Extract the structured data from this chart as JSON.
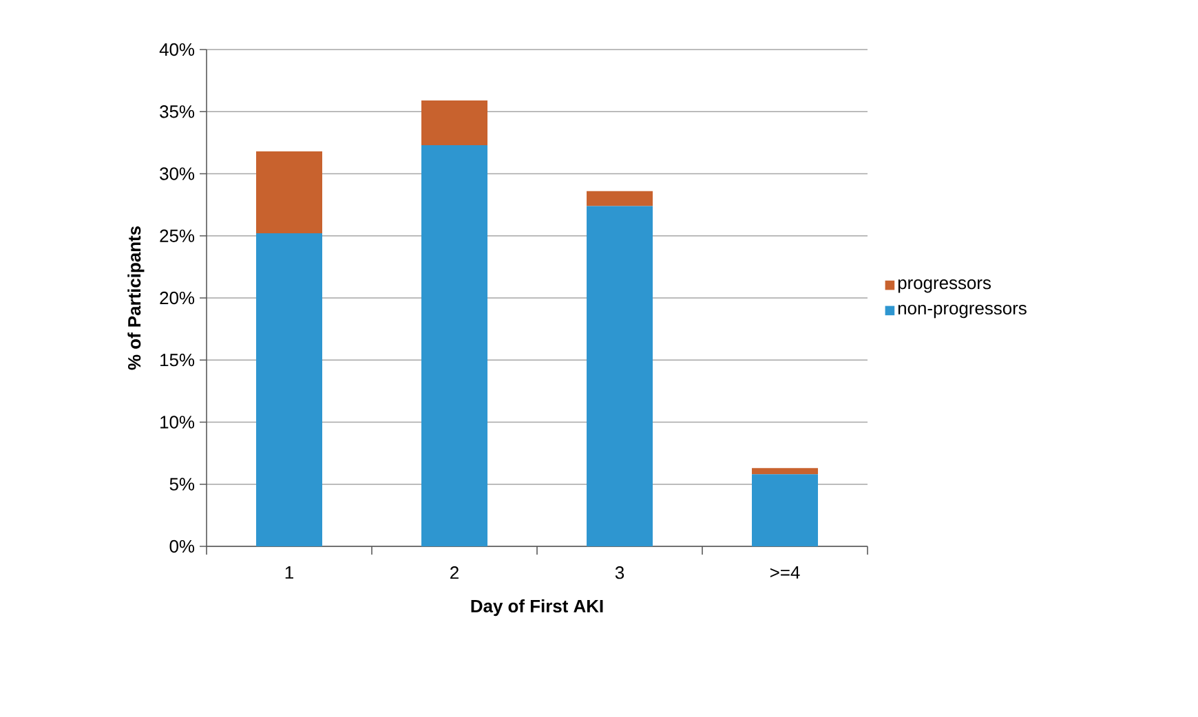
{
  "chart_data": {
    "type": "bar",
    "stacked": true,
    "xlabel": "Day of First AKI",
    "ylabel": "% of Participants",
    "categories": [
      "1",
      "2",
      "3",
      ">=4"
    ],
    "series": [
      {
        "name": "non-progressors",
        "color": "#2e96d0",
        "values": [
          25.2,
          32.3,
          27.4,
          5.8
        ]
      },
      {
        "name": "progressors",
        "color": "#c8622e",
        "values": [
          6.6,
          3.6,
          1.2,
          0.5
        ]
      }
    ],
    "ylim": [
      0,
      40
    ],
    "yticks": [
      {
        "value": 0,
        "label": "0%"
      },
      {
        "value": 5,
        "label": "5%"
      },
      {
        "value": 10,
        "label": "10%"
      },
      {
        "value": 15,
        "label": "15%"
      },
      {
        "value": 20,
        "label": "20%"
      },
      {
        "value": 25,
        "label": "25%"
      },
      {
        "value": 30,
        "label": "30%"
      },
      {
        "value": 35,
        "label": "35%"
      },
      {
        "value": 40,
        "label": "40%"
      }
    ],
    "grid": "y",
    "legend": "right"
  }
}
